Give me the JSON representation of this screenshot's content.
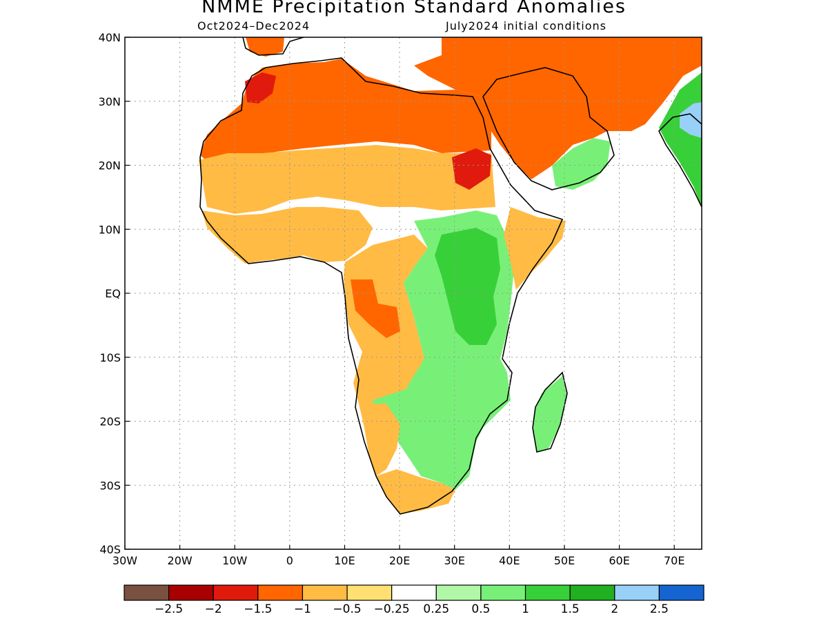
{
  "title": "NMME Precipitation Standard Anomalies",
  "subtitle_left": "Oct2024–Dec2024",
  "subtitle_right": "July2024 initial conditions",
  "map": {
    "lon_range": [
      -30,
      75
    ],
    "lat_range": [
      -40,
      40
    ],
    "grid": "dotted",
    "lon_ticks": [
      "30W",
      "20W",
      "10W",
      "0",
      "10E",
      "20E",
      "30E",
      "40E",
      "50E",
      "60E",
      "70E"
    ],
    "lat_ticks": [
      "40N",
      "30N",
      "20N",
      "10N",
      "EQ",
      "10S",
      "20S",
      "30S",
      "40S"
    ],
    "anomaly_regions": [
      {
        "name": "north-africa-dry",
        "category": -1.0,
        "color": "#ff6600"
      },
      {
        "name": "sahara-dry",
        "category": -0.5,
        "color": "#ffbb44"
      },
      {
        "name": "morocco-very-dry",
        "category": -1.5,
        "color": "#e01a0c"
      },
      {
        "name": "sudan-very-dry",
        "category": -1.5,
        "color": "#e01a0c"
      },
      {
        "name": "west-africa-dry",
        "category": -0.5,
        "color": "#ffbb44"
      },
      {
        "name": "central-africa-dry",
        "category": -0.5,
        "color": "#ffbb44"
      },
      {
        "name": "gabon-dry",
        "category": -1.0,
        "color": "#ff6600"
      },
      {
        "name": "east-africa-wet",
        "category": 0.5,
        "color": "#78f078"
      },
      {
        "name": "great-lakes-wet",
        "category": 1.0,
        "color": "#38d038"
      },
      {
        "name": "southern-africa-wet",
        "category": 0.5,
        "color": "#78f078"
      },
      {
        "name": "southwest-africa-dry",
        "category": -0.5,
        "color": "#ffbb44"
      },
      {
        "name": "south-africa-dry",
        "category": -0.5,
        "color": "#ffbb44"
      },
      {
        "name": "madagascar-wet",
        "category": 0.5,
        "color": "#78f078"
      },
      {
        "name": "arabia-dry",
        "category": -1.0,
        "color": "#ff6600"
      },
      {
        "name": "yemen-wet",
        "category": 0.5,
        "color": "#78f078"
      },
      {
        "name": "india-wet",
        "category": 1.0,
        "color": "#38d038"
      },
      {
        "name": "india-very-wet",
        "category": 2.0,
        "color": "#98d0f8"
      },
      {
        "name": "iran-dry",
        "category": -1.0,
        "color": "#ff6600"
      },
      {
        "name": "horn-africa-dry",
        "category": -0.5,
        "color": "#ffbb44"
      }
    ]
  },
  "legend": {
    "colors": [
      "#7a5040",
      "#a80000",
      "#e01a0c",
      "#ff6600",
      "#ffbb44",
      "#ffe070",
      "#ffffff",
      "#b0f8a8",
      "#78f078",
      "#38d038",
      "#20b020",
      "#98d0f8",
      "#1464d2"
    ],
    "labels": [
      "−2.5",
      "−2",
      "−1.5",
      "−1",
      "−0.5",
      "−0.25",
      "0.25",
      "0.5",
      "1",
      "1.5",
      "2",
      "2.5"
    ]
  }
}
